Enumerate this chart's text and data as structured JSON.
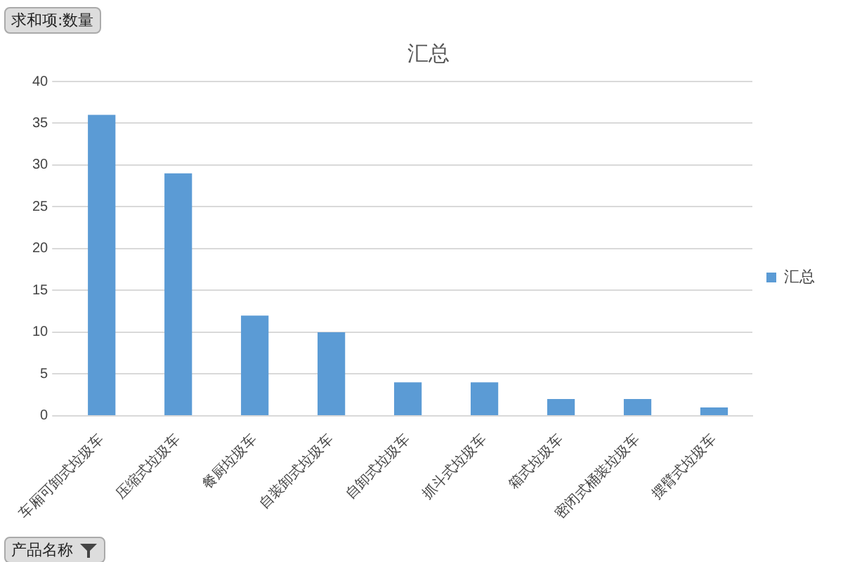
{
  "chart_data": {
    "type": "bar",
    "title": "汇总",
    "categories": [
      "车厢可卸式垃圾车",
      "压缩式垃圾车",
      "餐厨垃圾车",
      "自装卸式垃圾车",
      "自卸式垃圾车",
      "抓斗式垃圾车",
      "箱式垃圾车",
      "密闭式桶装垃圾车",
      "摆臂式垃圾车"
    ],
    "series": [
      {
        "name": "汇总",
        "color": "#5b9bd5",
        "values": [
          36,
          29,
          12,
          10,
          4,
          4,
          2,
          2,
          1
        ]
      }
    ],
    "ylim": [
      0,
      40
    ],
    "yticks": [
      0,
      5,
      10,
      15,
      20,
      25,
      30,
      35,
      40
    ],
    "grid": "y",
    "legend": "right",
    "annotations": [
      "求和项:数量",
      "产品名称"
    ]
  }
}
